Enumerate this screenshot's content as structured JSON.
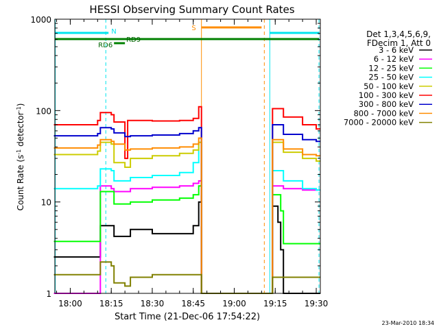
{
  "chart_data": {
    "type": "line",
    "title": "HESSI Observing Summary Count Rates",
    "xlabel": "Start Time (21-Dec-06 17:54:22)",
    "ylabel_main": "Count Rate (s",
    "ylabel_sup1": "-1",
    "ylabel_mid": " detector",
    "ylabel_sup2": "-1",
    "ylabel_end": ")",
    "y_scale": "log",
    "ylim": [
      1,
      1000
    ],
    "xlim": [
      "17:54:22",
      "19:31:30"
    ],
    "x_ticks": [
      "18:00",
      "18:15",
      "18:30",
      "18:45",
      "19:00",
      "19:15",
      "19:30"
    ],
    "y_ticks": [
      "1",
      "10",
      "100",
      "1000"
    ],
    "legend_header": [
      "Det 1,3,4,5,6,9,",
      "FDecim 1, Att 0"
    ],
    "legend_position": "right",
    "timestamp": "23-Mar-2010 18:34",
    "flags": [
      {
        "label": "N",
        "color": "#00e5ee"
      },
      {
        "label": "S",
        "color": "#ff8c00"
      },
      {
        "label": "RD6",
        "color": "#006400"
      },
      {
        "label": "RD9",
        "color": "#006400"
      }
    ],
    "series": [
      {
        "name": "3 - 6 keV",
        "color": "#000000",
        "x": [
          "17:54",
          "18:10",
          "18:11",
          "18:15",
          "18:16",
          "18:20",
          "18:22",
          "18:30",
          "18:40",
          "18:45",
          "18:47",
          "18:48",
          "19:13",
          "19:14",
          "19:16",
          "19:17",
          "19:18"
        ],
        "values": [
          2.5,
          2.5,
          5.5,
          5.5,
          4.2,
          4.2,
          5.0,
          4.5,
          4.5,
          5.5,
          10.0,
          1.0,
          1.0,
          9.0,
          6.0,
          3.0,
          1.0
        ]
      },
      {
        "name": "6 - 12 keV",
        "color": "#ff00ff",
        "x": [
          "17:54",
          "18:10",
          "18:11",
          "18:15",
          "18:16",
          "18:20",
          "18:22",
          "18:30",
          "18:40",
          "18:45",
          "18:47",
          "18:48",
          "19:13",
          "19:14",
          "19:18",
          "19:25",
          "19:30"
        ],
        "values": [
          1.0,
          1.0,
          15.0,
          14.0,
          13.0,
          13.0,
          14.0,
          14.5,
          15.0,
          16.0,
          17.0,
          1.0,
          1.0,
          15.0,
          14.0,
          13.5,
          13.5
        ]
      },
      {
        "name": "12 - 25 keV",
        "color": "#00ff00",
        "x": [
          "17:54",
          "18:10",
          "18:11",
          "18:15",
          "18:16",
          "18:20",
          "18:22",
          "18:30",
          "18:40",
          "18:45",
          "18:47",
          "18:48",
          "19:13",
          "19:14",
          "19:17",
          "19:18",
          "19:30"
        ],
        "values": [
          3.7,
          3.7,
          13.0,
          13.0,
          9.5,
          9.5,
          10.0,
          10.5,
          11.0,
          12.0,
          15.0,
          1.0,
          1.0,
          12.0,
          8.0,
          3.5,
          3.5
        ]
      },
      {
        "name": "25 - 50 keV",
        "color": "#00ffff",
        "x": [
          "17:54",
          "18:10",
          "18:11",
          "18:15",
          "18:16",
          "18:20",
          "18:22",
          "18:30",
          "18:40",
          "18:45",
          "18:47",
          "18:48",
          "19:13",
          "19:14",
          "19:18",
          "19:25",
          "19:30"
        ],
        "values": [
          14.0,
          15.0,
          23.0,
          22.0,
          17.0,
          17.0,
          18.5,
          19.5,
          21.0,
          27.0,
          45.0,
          1.0,
          1.0,
          22.0,
          17.0,
          14.0,
          13.5
        ]
      },
      {
        "name": "50 - 100 keV",
        "color": "#cccc00",
        "x": [
          "17:54",
          "18:10",
          "18:11",
          "18:15",
          "18:16",
          "18:20",
          "18:22",
          "18:30",
          "18:40",
          "18:45",
          "18:47",
          "18:48",
          "19:13",
          "19:14",
          "19:18",
          "19:25",
          "19:30"
        ],
        "values": [
          33.0,
          36.0,
          45.0,
          43.0,
          27.0,
          24.0,
          30.0,
          32.0,
          34.0,
          37.0,
          45.0,
          1.0,
          1.0,
          45.0,
          35.0,
          30.0,
          28.0
        ]
      },
      {
        "name": "100 - 300 keV",
        "color": "#ff0000",
        "x": [
          "17:54",
          "18:10",
          "18:11",
          "18:15",
          "18:16",
          "18:20",
          "18:21",
          "18:30",
          "18:40",
          "18:45",
          "18:47",
          "18:48",
          "19:13",
          "19:14",
          "19:18",
          "19:25",
          "19:30"
        ],
        "values": [
          70.0,
          78.0,
          95.0,
          90.0,
          75.0,
          30.0,
          78.0,
          77.0,
          78.0,
          82.0,
          110.0,
          1.0,
          1.0,
          105.0,
          85.0,
          70.0,
          63.0
        ]
      },
      {
        "name": "300 - 800 keV",
        "color": "#0000cd",
        "x": [
          "17:54",
          "18:10",
          "18:11",
          "18:15",
          "18:16",
          "18:20",
          "18:22",
          "18:30",
          "18:40",
          "18:45",
          "18:47",
          "18:48",
          "19:13",
          "19:14",
          "19:18",
          "19:25",
          "19:30"
        ],
        "values": [
          53.0,
          56.0,
          65.0,
          63.0,
          57.0,
          52.0,
          53.0,
          54.0,
          56.0,
          60.0,
          65.0,
          1.0,
          1.0,
          70.0,
          55.0,
          48.0,
          46.0
        ]
      },
      {
        "name": "800 - 7000 keV",
        "color": "#ff8c00",
        "x": [
          "17:54",
          "18:10",
          "18:11",
          "18:15",
          "18:16",
          "18:20",
          "18:22",
          "18:30",
          "18:40",
          "18:45",
          "18:47",
          "18:48",
          "19:13",
          "19:14",
          "19:18",
          "19:25",
          "19:30"
        ],
        "values": [
          39.0,
          42.0,
          48.0,
          46.0,
          43.0,
          37.0,
          38.0,
          39.0,
          40.0,
          43.0,
          50.0,
          1.0,
          1.0,
          48.0,
          38.0,
          33.0,
          32.0
        ]
      },
      {
        "name": "7000 - 20000 keV",
        "color": "#808000",
        "x": [
          "17:54",
          "18:10",
          "18:11",
          "18:15",
          "18:16",
          "18:20",
          "18:22",
          "18:30",
          "18:40",
          "18:45",
          "18:47",
          "18:48",
          "19:13",
          "19:14",
          "19:30"
        ],
        "values": [
          1.6,
          1.6,
          2.2,
          2.0,
          1.3,
          1.2,
          1.5,
          1.6,
          1.6,
          1.6,
          1.6,
          1.0,
          1.0,
          1.5,
          1.5
        ]
      }
    ]
  }
}
